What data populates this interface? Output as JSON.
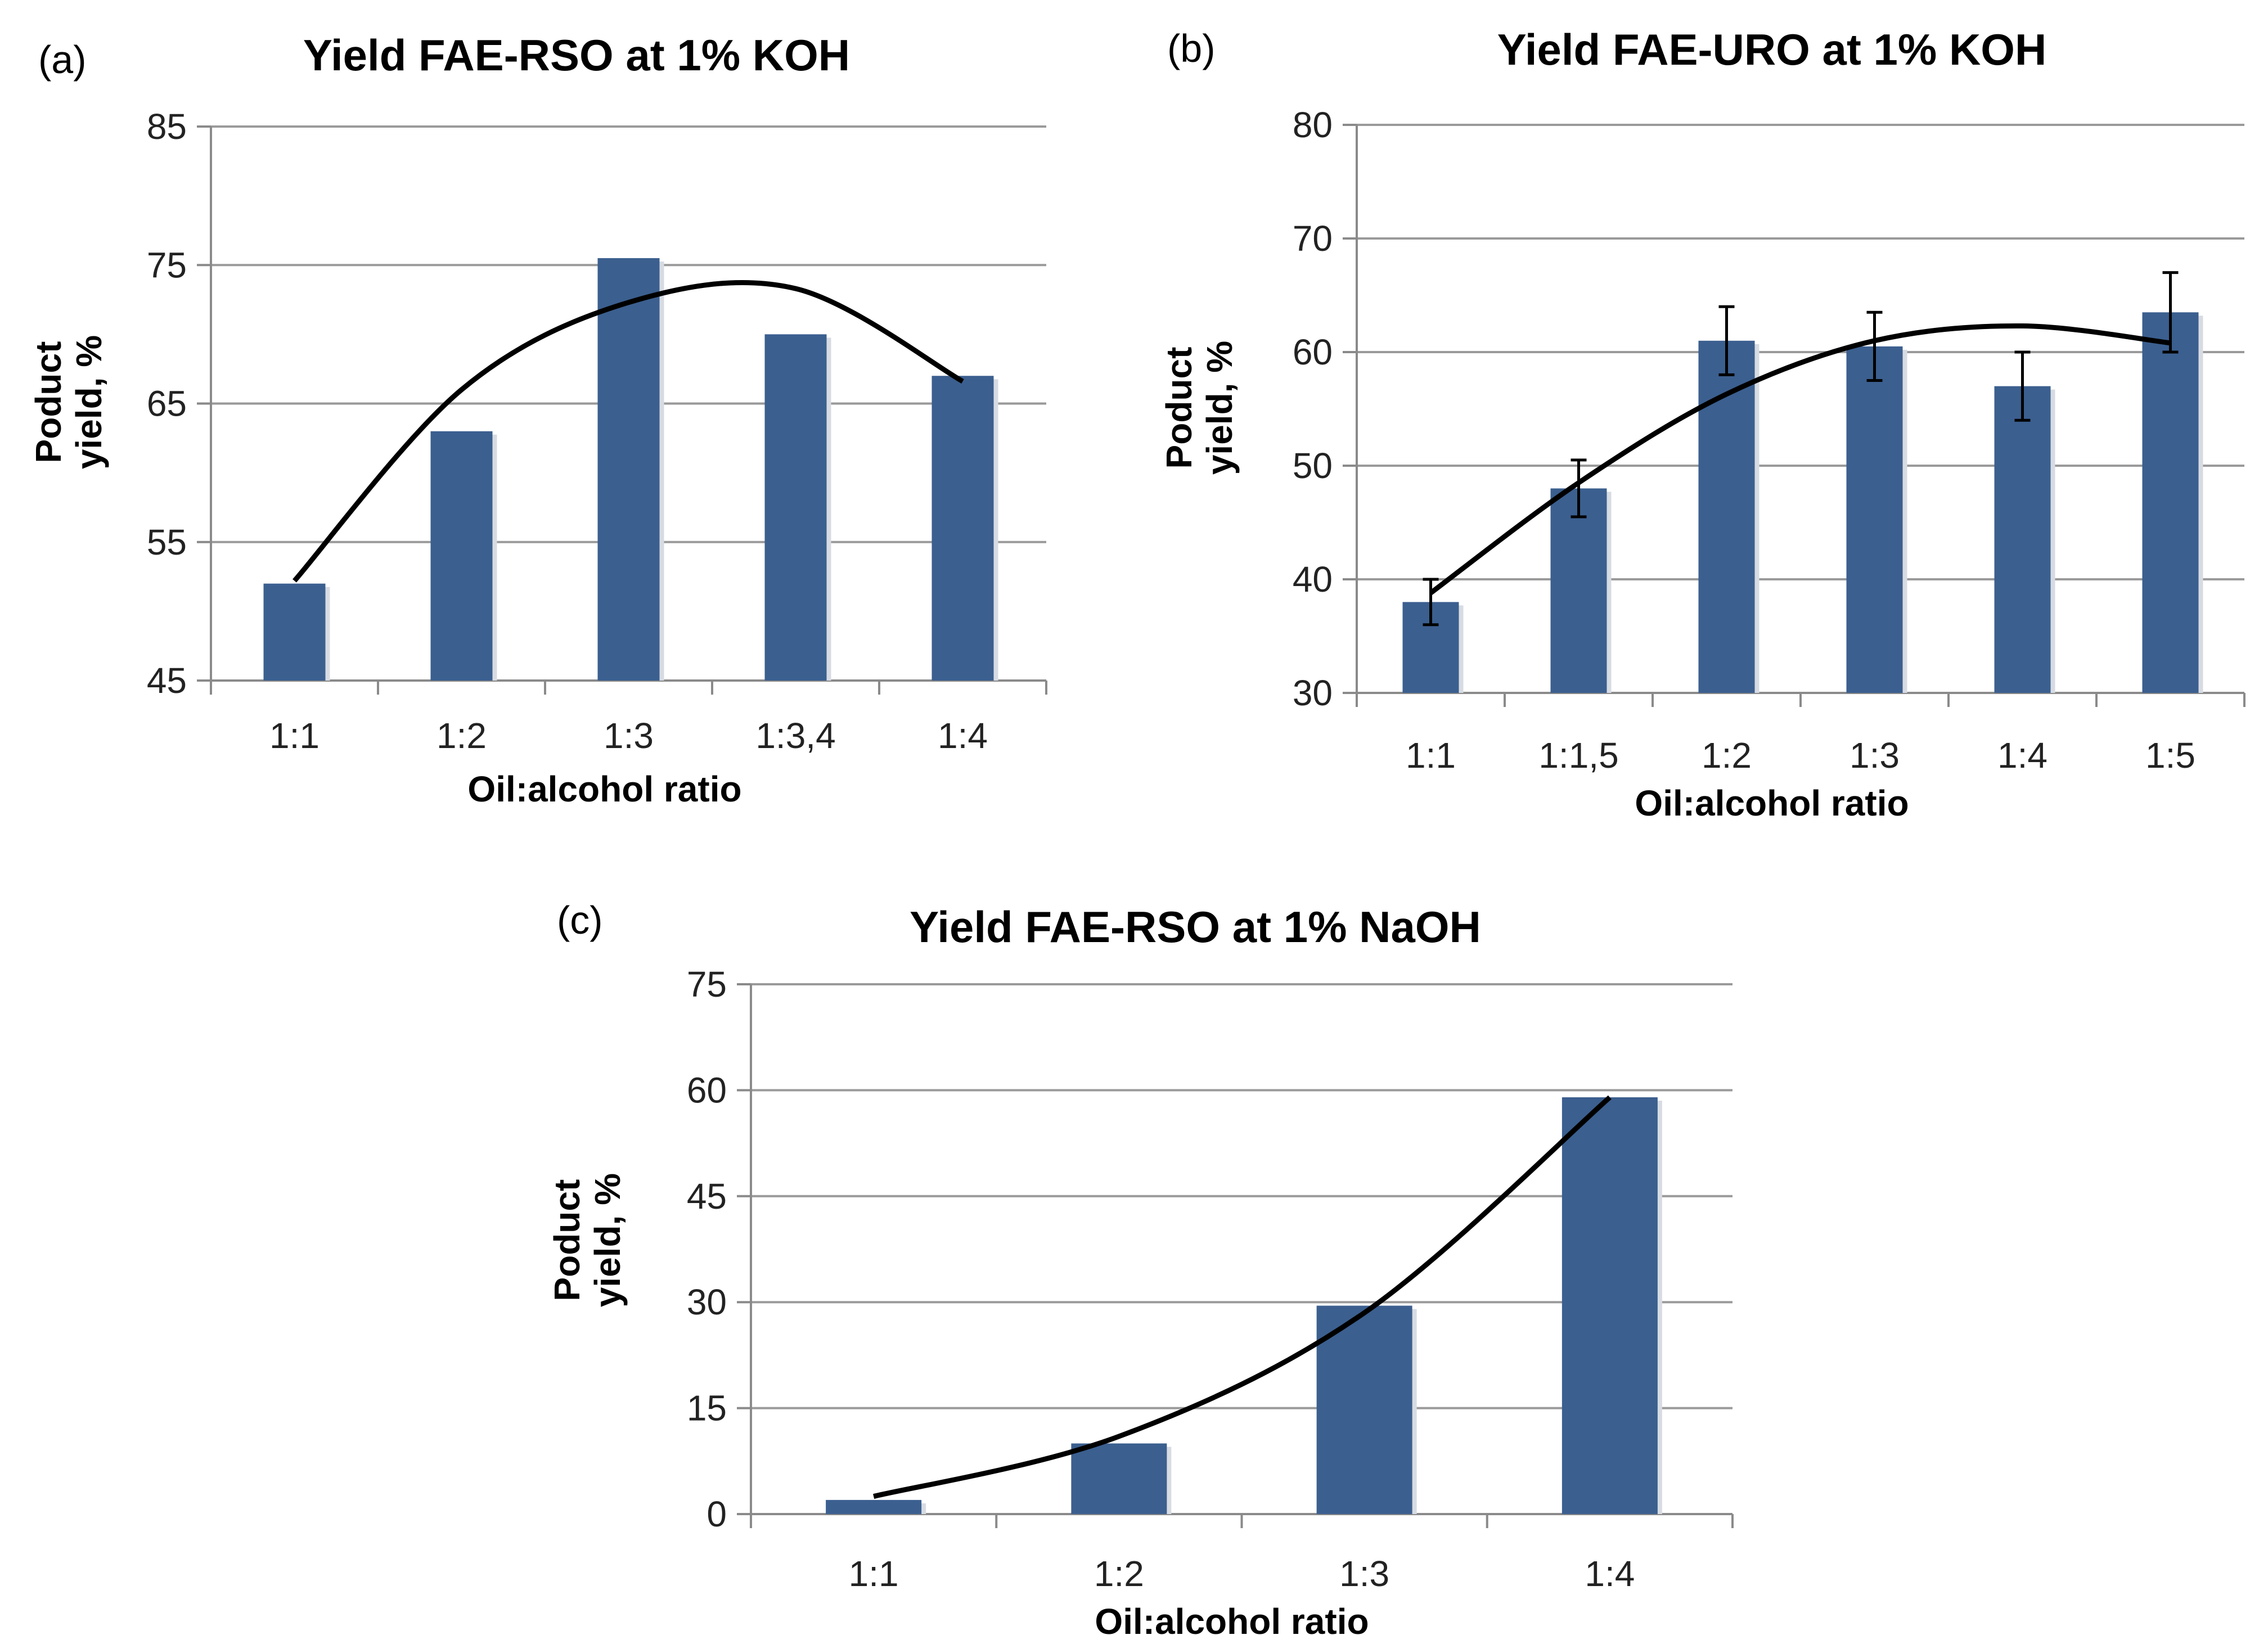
{
  "chart_data": [
    {
      "id": "a",
      "type": "bar",
      "panel_label": "(a)",
      "title": "Yield FAE-RSO at 1% KOH",
      "xlabel": "Oil:alcohol ratio",
      "ylabel": [
        "Poduct",
        "yield, %"
      ],
      "categories": [
        "1:1",
        "1:2",
        "1:3",
        "1:3,4",
        "1:4"
      ],
      "values": [
        52,
        63,
        75.5,
        70,
        67
      ],
      "ylim": [
        45,
        85
      ],
      "yticks": [
        45,
        55,
        65,
        75,
        85
      ],
      "grid": true,
      "trendline": {
        "type": "polynomial",
        "order": 2,
        "points": [
          52.2,
          66.0,
          72.3,
          73.3,
          66.6
        ]
      },
      "colors": {
        "bar": "#3b5f8f",
        "trend": "#000000",
        "grid": "#9a9a9a"
      }
    },
    {
      "id": "b",
      "type": "bar",
      "panel_label": "(b)",
      "title": "Yield FAE-URO at 1% KOH",
      "xlabel": "Oil:alcohol ratio",
      "ylabel": [
        "Poduct",
        "yield, %"
      ],
      "categories": [
        "1:1",
        "1:1,5",
        "1:2",
        "1:3",
        "1:4",
        "1:5"
      ],
      "values": [
        38,
        48,
        61,
        60.5,
        57,
        63.5
      ],
      "errors": [
        2,
        2.5,
        3,
        3,
        3,
        3.5
      ],
      "ylim": [
        30,
        80
      ],
      "yticks": [
        30,
        40,
        50,
        60,
        70,
        80
      ],
      "grid": true,
      "trendline": {
        "type": "polynomial",
        "order": 2,
        "points": [
          38.8,
          48.5,
          56.3,
          61.0,
          62.3,
          60.8
        ]
      },
      "colors": {
        "bar": "#3b5f8f",
        "trend": "#000000",
        "grid": "#9a9a9a"
      }
    },
    {
      "id": "c",
      "type": "bar",
      "panel_label": "(c)",
      "title": "Yield FAE-RSO at 1% NaOH",
      "xlabel": "Oil:alcohol ratio",
      "ylabel": [
        "Poduct",
        "yield, %"
      ],
      "categories": [
        "1:1",
        "1:2",
        "1:3",
        "1:4"
      ],
      "values": [
        2,
        10,
        29.5,
        59
      ],
      "ylim": [
        0,
        75
      ],
      "yticks": [
        0,
        15,
        30,
        45,
        60,
        75
      ],
      "grid": true,
      "trendline": {
        "type": "polynomial",
        "order": 2,
        "points": [
          2.5,
          11.0,
          28.5,
          59.0
        ]
      },
      "colors": {
        "bar": "#3b5f8f",
        "trend": "#000000",
        "grid": "#9a9a9a"
      }
    }
  ]
}
